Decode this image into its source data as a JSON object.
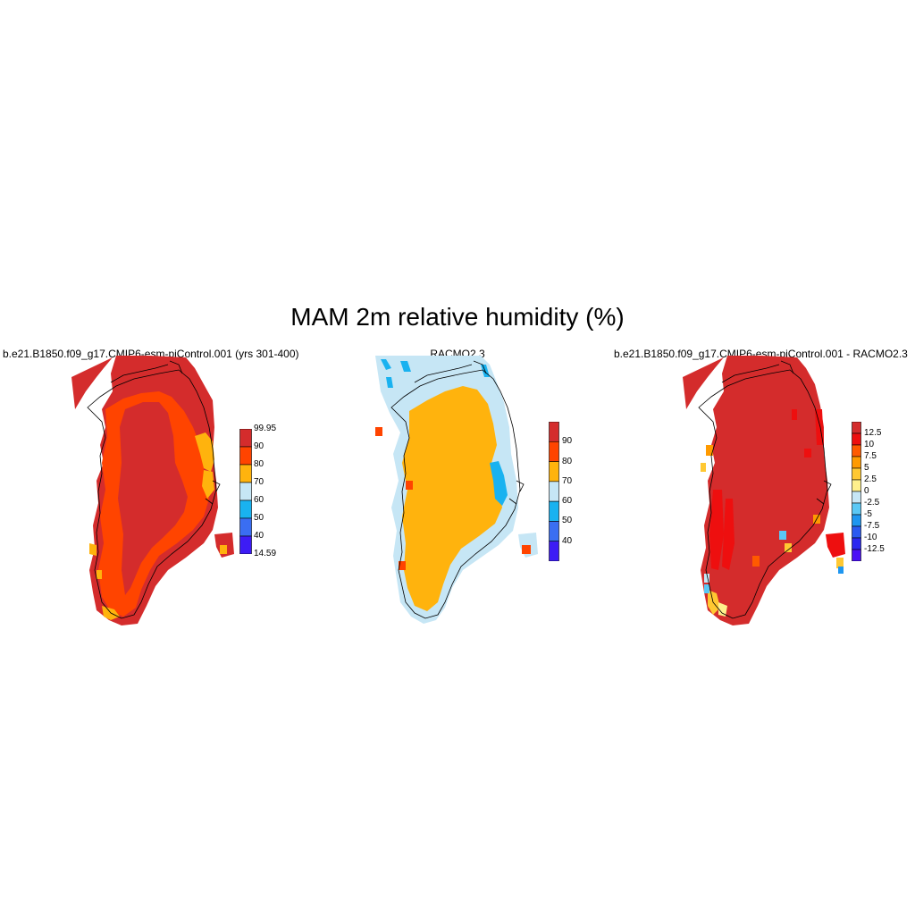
{
  "chart_data": {
    "title": "MAM 2m relative humidity (%)",
    "panels": [
      {
        "type": "heatmap",
        "title": "b.e21.B1850.f09_g17.CMIP6-esm-piControl.001 (yrs 301-400)",
        "colorbar": {
          "labels": [
            "99.95",
            "90",
            "80",
            "70",
            "60",
            "50",
            "40",
            "14.59"
          ],
          "label_style": "edges",
          "colors": [
            "#d42c2c",
            "#ff4400",
            "#ffb30d",
            "#c6e6f5",
            "#19b2f0",
            "#3a6ef2",
            "#3d1cf5"
          ]
        }
      },
      {
        "type": "heatmap",
        "title": "RACMO2.3",
        "colorbar": {
          "labels": [
            "90",
            "80",
            "70",
            "60",
            "50",
            "40"
          ],
          "label_style": "interior",
          "colors": [
            "#d42c2c",
            "#ff4400",
            "#ffb30d",
            "#c6e6f5",
            "#19b2f0",
            "#3a6ef2",
            "#3d1cf5"
          ]
        }
      },
      {
        "type": "heatmap",
        "title": "b.e21.B1850.f09_g17.CMIP6-esm-piControl.001 - RACMO2.3",
        "colorbar": {
          "labels": [
            "12.5",
            "10",
            "7.5",
            "5",
            "2.5",
            "0",
            "-2.5",
            "-5",
            "-7.5",
            "-10",
            "-12.5"
          ],
          "label_style": "interior",
          "colors": [
            "#d42c2c",
            "#ee0f0f",
            "#ff5a00",
            "#ff9a00",
            "#ffc832",
            "#fff08c",
            "#c6e6f5",
            "#5ac8f5",
            "#1e96f0",
            "#2a5af0",
            "#2a28f0",
            "#4b10f5"
          ]
        }
      }
    ]
  }
}
